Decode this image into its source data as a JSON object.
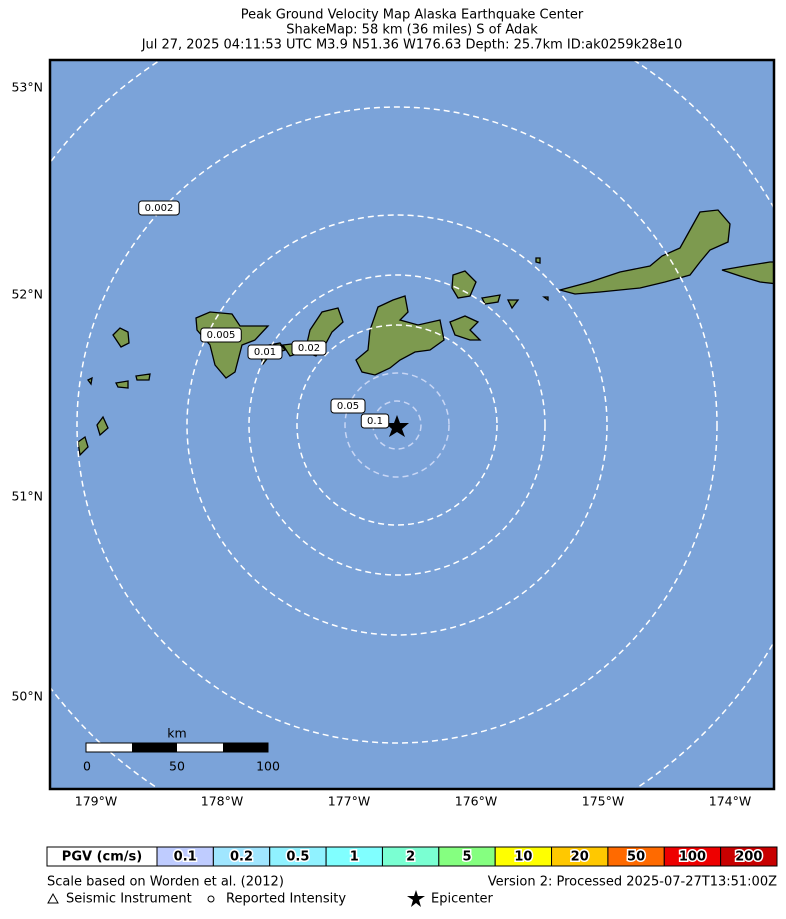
{
  "header": {
    "title": "Peak Ground Velocity Map Alaska Earthquake Center",
    "subtitle": "ShakeMap: 58 km (36 miles) S of Adak",
    "details": "Jul 27, 2025 04:11:53 UTC M3.9 N51.36 W176.63 Depth: 25.7km ID:ak0259k28e10"
  },
  "map": {
    "lat_labels": [
      "53°N",
      "52°N",
      "51°N",
      "50°N"
    ],
    "lon_labels": [
      "179°W",
      "178°W",
      "177°W",
      "176°W",
      "175°W",
      "174°W"
    ],
    "contour_labels": [
      "0.1",
      "0.05",
      "0.02",
      "0.01",
      "0.005",
      "0.002"
    ],
    "scale_bar": {
      "unit": "km",
      "ticks": [
        "0",
        "50",
        "100"
      ]
    }
  },
  "legend": {
    "title": "PGV (cm/s)",
    "bins": [
      {
        "label": "0.1",
        "color": "#bfccff"
      },
      {
        "label": "0.2",
        "color": "#a0e6ff"
      },
      {
        "label": "0.5",
        "color": "#90f2ff"
      },
      {
        "label": "1",
        "color": "#80ffff"
      },
      {
        "label": "2",
        "color": "#7affd2"
      },
      {
        "label": "5",
        "color": "#85ff80"
      },
      {
        "label": "10",
        "color": "#ffff00"
      },
      {
        "label": "20",
        "color": "#ffc800"
      },
      {
        "label": "50",
        "color": "#ff6a00"
      },
      {
        "label": "100",
        "color": "#ee0000"
      },
      {
        "label": "200",
        "color": "#c80000"
      }
    ]
  },
  "footer": {
    "scale_note": "Scale based on Worden et al. (2012)",
    "version": "Version 2: Processed 2025-07-27T13:51:00Z",
    "seismic": "Seismic Instrument",
    "reported": "Reported Intensity",
    "epicenter": "Epicenter"
  }
}
